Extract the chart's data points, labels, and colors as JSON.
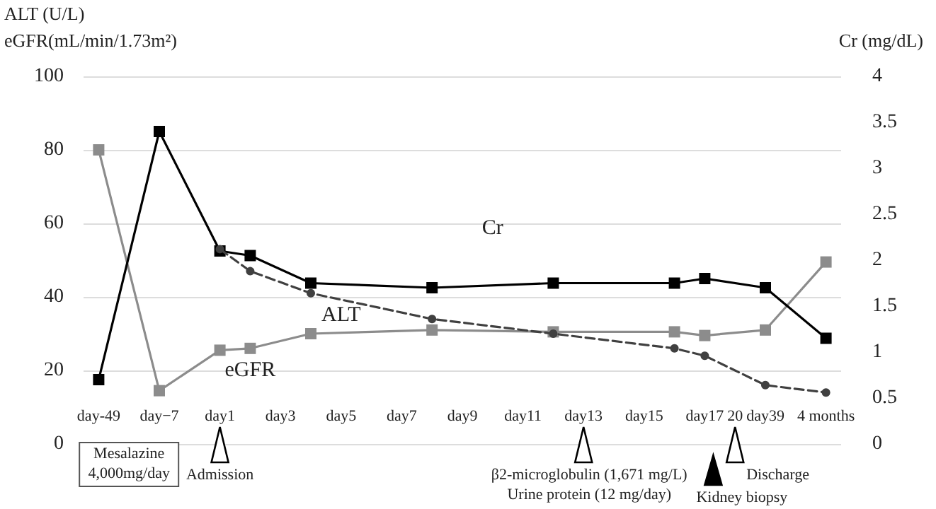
{
  "chart_data": {
    "type": "line",
    "ylabel": "ALT (U/L)\neGFR(mL/min/1.73m²)",
    "y2label": "Cr (mg/dL)",
    "categories": [
      "day-49",
      null,
      "day−7",
      null,
      "day1",
      null,
      "day3",
      null,
      "day5",
      null,
      "day7",
      null,
      "day9",
      null,
      "day11",
      null,
      "day13",
      null,
      "day15",
      null,
      "day17",
      "20",
      "day39",
      null,
      "4 months"
    ],
    "series": [
      {
        "name": "Cr",
        "color": "#000000",
        "axis": "y2",
        "marker": "square",
        "line_style": "solid",
        "values": [
          0.7,
          null,
          3.4,
          null,
          2.1,
          2.05,
          null,
          1.75,
          null,
          null,
          null,
          1.7,
          null,
          null,
          null,
          1.75,
          null,
          null,
          null,
          1.75,
          1.8,
          null,
          1.7,
          null,
          1.15
        ]
      },
      {
        "name": "ALT",
        "color": "#404040",
        "marker": "circle",
        "line_style": "dashed",
        "values": [
          null,
          null,
          null,
          null,
          53,
          47,
          null,
          41,
          null,
          null,
          null,
          34,
          null,
          null,
          null,
          30,
          null,
          null,
          null,
          26,
          24,
          null,
          16,
          null,
          14
        ]
      },
      {
        "name": "eGFR",
        "color": "#8c8c8c",
        "marker": "square",
        "line_style": "solid",
        "values": [
          80,
          null,
          14.5,
          null,
          25.5,
          26,
          null,
          30,
          null,
          null,
          null,
          31,
          null,
          null,
          null,
          30.5,
          null,
          null,
          null,
          30.5,
          29.5,
          null,
          31,
          null,
          49.5
        ]
      }
    ],
    "ylim": [
      0,
      100
    ],
    "yticks": [
      0,
      20,
      40,
      60,
      80,
      100
    ],
    "y2lim": [
      0,
      4
    ],
    "y2ticks": [
      0,
      0.5,
      1,
      1.5,
      2,
      2.5,
      3,
      3.5,
      4
    ],
    "grid": "y",
    "annotations": [
      "Mesalazine\n4,000mg/day",
      "Admission",
      "β2-microglobulin (1,671 mg/L)\nUrine protein (12 mg/day)",
      "Kidney biopsy",
      "Discharge"
    ]
  }
}
